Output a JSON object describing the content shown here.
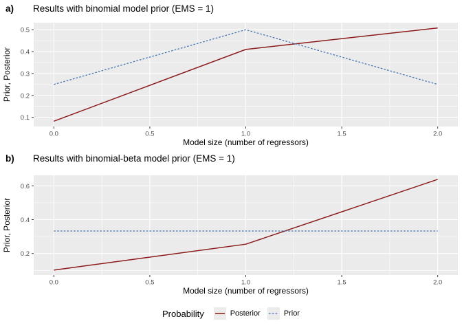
{
  "colors": {
    "posterior": "#8B1A1A",
    "prior": "#4272B0",
    "panel_bg": "#EBEBEB",
    "grid": "#FFFFFF",
    "tick_mark": "#333333",
    "tick_text": "#4D4D4D",
    "axis_title_text": "#000000",
    "legend_key_bg": "#EBEBEB"
  },
  "legend": {
    "title": "Probability",
    "items": [
      {
        "label": "Posterior",
        "style": "solid",
        "color_key": "posterior"
      },
      {
        "label": "Prior",
        "style": "dashed",
        "color_key": "prior"
      }
    ],
    "position": "bottom"
  },
  "chart_data": [
    {
      "type": "line",
      "panel_tag": "a)",
      "title": "Results with binomial model prior (EMS = 1)",
      "xlabel": "Model size (number of regressors)",
      "ylabel": "Prior, Posterior",
      "x": [
        0,
        1,
        2
      ],
      "series": [
        {
          "name": "Posterior",
          "values": [
            0.082,
            0.41,
            0.508
          ],
          "color_key": "posterior",
          "dash": "solid"
        },
        {
          "name": "Prior",
          "values": [
            0.25,
            0.5,
            0.25
          ],
          "color_key": "prior",
          "dash": "dashed"
        }
      ],
      "xticks": [
        0.0,
        0.5,
        1.0,
        1.5,
        2.0
      ],
      "yticks": [
        0.1,
        0.2,
        0.3,
        0.4,
        0.5
      ],
      "xlim": [
        -0.105,
        2.105
      ],
      "ylim": [
        0.058,
        0.532
      ],
      "grid": true,
      "legend_position": "bottom"
    },
    {
      "type": "line",
      "panel_tag": "b)",
      "title": "Results with binomial-beta model prior (EMS = 1)",
      "xlabel": "Model size (number of regressors)",
      "ylabel": "Prior, Posterior",
      "x": [
        0,
        1,
        2
      ],
      "series": [
        {
          "name": "Posterior",
          "values": [
            0.102,
            0.255,
            0.638
          ],
          "color_key": "posterior",
          "dash": "solid"
        },
        {
          "name": "Prior",
          "values": [
            0.333,
            0.333,
            0.333
          ],
          "color_key": "prior",
          "dash": "dashed"
        }
      ],
      "xticks": [
        0.0,
        0.5,
        1.0,
        1.5,
        2.0
      ],
      "yticks": [
        0.2,
        0.4,
        0.6
      ],
      "xlim": [
        -0.105,
        2.105
      ],
      "ylim": [
        0.073,
        0.662
      ],
      "grid": true,
      "legend_position": "bottom"
    }
  ]
}
